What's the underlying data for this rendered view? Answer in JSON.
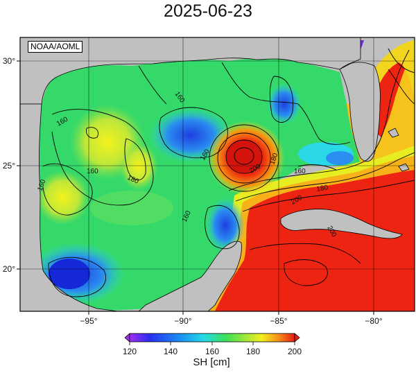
{
  "title": "2025-06-23",
  "source_label": "NOAA/AOML",
  "colorbar": {
    "title": "SH [cm]",
    "ticks": [
      "120",
      "140",
      "160",
      "180",
      "200"
    ]
  },
  "map": {
    "lon_ticks": [
      "−95°",
      "−90°",
      "−85°",
      "−80°"
    ],
    "lat_ticks": [
      "30°",
      "25°",
      "20°"
    ],
    "contour_labels": [
      "160",
      "160",
      "160",
      "160",
      "160",
      "180",
      "180",
      "180",
      "200",
      "200",
      "200",
      "160",
      "160"
    ]
  },
  "colors": {
    "land": "#c0c0c0",
    "low": "#0a2fd6",
    "mid": "#26d9e8",
    "green": "#39e05a",
    "high": "#e81e10"
  }
}
